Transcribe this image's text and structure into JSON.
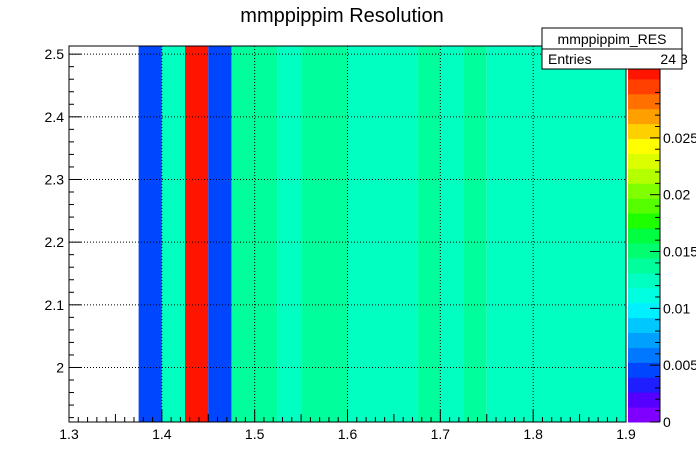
{
  "chart_data": {
    "type": "heatmap",
    "title": "mmppippim Resolution",
    "xlabel": "",
    "ylabel": "",
    "xlim": [
      1.3,
      1.9
    ],
    "ylim": [
      1.913,
      2.513
    ],
    "x_ticks": [
      "1.3",
      "1.4",
      "1.5",
      "1.6",
      "1.7",
      "1.8",
      "1.9"
    ],
    "y_ticks": [
      "2",
      "2.1",
      "2.2",
      "2.3",
      "2.4",
      "2.5"
    ],
    "grid": true,
    "bins": [
      {
        "x0": 1.375,
        "x1": 1.4,
        "value": 0.004
      },
      {
        "x0": 1.4,
        "x1": 1.425,
        "value": 0.012
      },
      {
        "x0": 1.425,
        "x1": 1.45,
        "value": 0.031
      },
      {
        "x0": 1.45,
        "x1": 1.475,
        "value": 0.004
      },
      {
        "x0": 1.475,
        "x1": 1.525,
        "value": 0.014
      },
      {
        "x0": 1.525,
        "x1": 1.55,
        "value": 0.012
      },
      {
        "x0": 1.55,
        "x1": 1.6,
        "value": 0.014
      },
      {
        "x0": 1.6,
        "x1": 1.675,
        "value": 0.012
      },
      {
        "x0": 1.675,
        "x1": 1.7,
        "value": 0.014
      },
      {
        "x0": 1.7,
        "x1": 1.725,
        "value": 0.012
      },
      {
        "x0": 1.725,
        "x1": 1.75,
        "value": 0.014
      },
      {
        "x0": 1.75,
        "x1": 1.9,
        "value": 0.012
      }
    ],
    "colorbar": {
      "min": 0,
      "max": 0.0315,
      "tick_values": [
        0,
        0.005,
        0.01,
        0.015,
        0.02,
        0.025
      ],
      "tick_labels": [
        "0",
        "0.005",
        "0.01",
        "0.015",
        "0.02",
        "0.025"
      ],
      "exponent_label": "3",
      "colors": [
        "#7f00ff",
        "#5500ff",
        "#1e1eff",
        "#0046ff",
        "#0078ff",
        "#00a0ff",
        "#00c8ff",
        "#00f0ff",
        "#00ffe0",
        "#00ffc0",
        "#00ff9c",
        "#00ff70",
        "#00ff40",
        "#1eff00",
        "#55ff00",
        "#80ff00",
        "#b4ff00",
        "#dcff00",
        "#ffff00",
        "#ffd000",
        "#ffa000",
        "#ff7000",
        "#ff4000",
        "#ff1400"
      ]
    },
    "stats_box": {
      "name": "mmppippim_RES",
      "entries_label": "Entries",
      "entries_value": "24"
    }
  }
}
